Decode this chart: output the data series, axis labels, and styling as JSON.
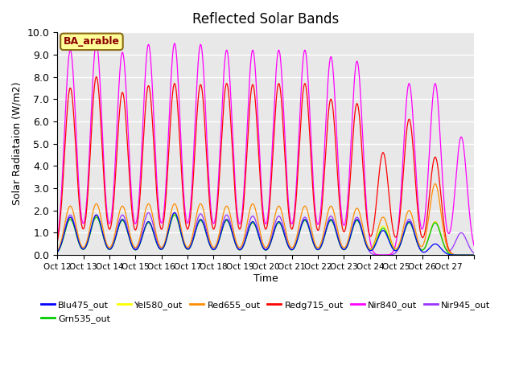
{
  "title": "Reflected Solar Bands",
  "xlabel": "Time",
  "ylabel": "Solar Radiataion (W/m2)",
  "ylim": [
    0,
    10.0
  ],
  "yticks": [
    0.0,
    1.0,
    2.0,
    3.0,
    4.0,
    5.0,
    6.0,
    7.0,
    8.0,
    9.0,
    10.0
  ],
  "annotation_text": "BA_arable",
  "annotation_color": "#8B0000",
  "annotation_bg": "#FFFF99",
  "background_color": "#E8E8E8",
  "grid_color": "white",
  "series": [
    {
      "name": "Blu475_out",
      "color": "#0000FF"
    },
    {
      "name": "Grn535_out",
      "color": "#00CC00"
    },
    {
      "name": "Yel580_out",
      "color": "#FFFF00"
    },
    {
      "name": "Red655_out",
      "color": "#FF8C00"
    },
    {
      "name": "Redg715_out",
      "color": "#FF0000"
    },
    {
      "name": "Nir840_out",
      "color": "#FF00FF"
    },
    {
      "name": "Nir945_out",
      "color": "#9933FF"
    }
  ],
  "xtick_labels": [
    "Oct 12",
    "Oct 13",
    "Oct 14",
    "Oct 15",
    "Oct 16",
    "Oct 17",
    "Oct 18",
    "Oct 19",
    "Oct 20",
    "Oct 21",
    "Oct 22",
    "Oct 23",
    "Oct 24",
    "Oct 25",
    "Oct 26",
    "Oct 27"
  ],
  "n_days": 16,
  "peaks_nir840": [
    9.2,
    9.5,
    9.1,
    9.45,
    9.5,
    9.45,
    9.2,
    9.2,
    9.2,
    9.2,
    8.9,
    8.7,
    0.0,
    7.7,
    7.7,
    5.3
  ],
  "peaks_nir945": [
    1.8,
    1.8,
    1.8,
    1.9,
    1.9,
    1.85,
    1.8,
    1.75,
    1.75,
    1.7,
    1.75,
    1.7,
    0.0,
    1.6,
    1.5,
    1.0
  ],
  "peaks_redg715": [
    7.5,
    8.0,
    7.3,
    7.6,
    7.7,
    7.65,
    7.7,
    7.65,
    7.7,
    7.7,
    7.0,
    6.8,
    4.6,
    6.1,
    4.4,
    0.0
  ],
  "peaks_red655": [
    2.2,
    2.3,
    2.2,
    2.3,
    2.3,
    2.3,
    2.2,
    2.3,
    2.2,
    2.2,
    2.2,
    2.1,
    1.7,
    2.0,
    3.2,
    0.0
  ],
  "peaks_yel580": [
    1.65,
    1.75,
    1.6,
    1.5,
    1.85,
    1.6,
    1.6,
    1.5,
    1.5,
    1.6,
    1.6,
    1.6,
    1.3,
    1.5,
    1.5,
    0.0
  ],
  "peaks_grn535": [
    1.6,
    1.7,
    1.55,
    1.45,
    1.8,
    1.55,
    1.55,
    1.45,
    1.45,
    1.55,
    1.55,
    1.55,
    1.2,
    1.45,
    1.45,
    0.0
  ],
  "peaks_blu475": [
    1.7,
    1.8,
    1.6,
    1.5,
    1.9,
    1.6,
    1.6,
    1.5,
    1.5,
    1.6,
    1.6,
    1.6,
    1.1,
    1.5,
    0.5,
    0.0
  ],
  "sigma": 0.22,
  "pts_per_day": 200
}
